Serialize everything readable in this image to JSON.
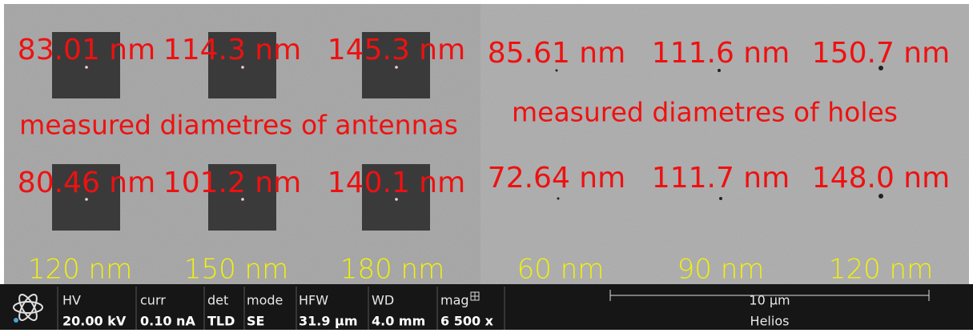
{
  "image": {
    "antenna_diameters_top": [
      "83.01 nm",
      "114.3 nm",
      "145.3 nm"
    ],
    "antenna_diameters_bottom": [
      "80.46 nm",
      "101.2 nm",
      "140.1 nm"
    ],
    "antenna_caption": "measured diametres of antennas",
    "hole_diameters_top": [
      "85.61 nm",
      "111.6 nm",
      "150.7 nm"
    ],
    "hole_diameters_bottom": [
      "72.64 nm",
      "111.7 nm",
      "148.0 nm"
    ],
    "hole_caption": "measured diametres of holes",
    "sizes": [
      "120 nm",
      "150 nm",
      "180 nm",
      "60 nm",
      "90 nm",
      "120 nm"
    ]
  },
  "info_bar": {
    "fields": [
      {
        "label": "HV",
        "value": "20.00 kV"
      },
      {
        "label": "curr",
        "value": "0.10 nA"
      },
      {
        "label": "det",
        "value": "TLD"
      },
      {
        "label": "mode",
        "value": "SE"
      },
      {
        "label": "HFW",
        "value": "31.9 µm"
      },
      {
        "label": "WD",
        "value": "4.0 mm"
      },
      {
        "label": "mag",
        "value": "6 500 x"
      }
    ],
    "scale_bar": "10 µm",
    "instrument": "Helios"
  }
}
